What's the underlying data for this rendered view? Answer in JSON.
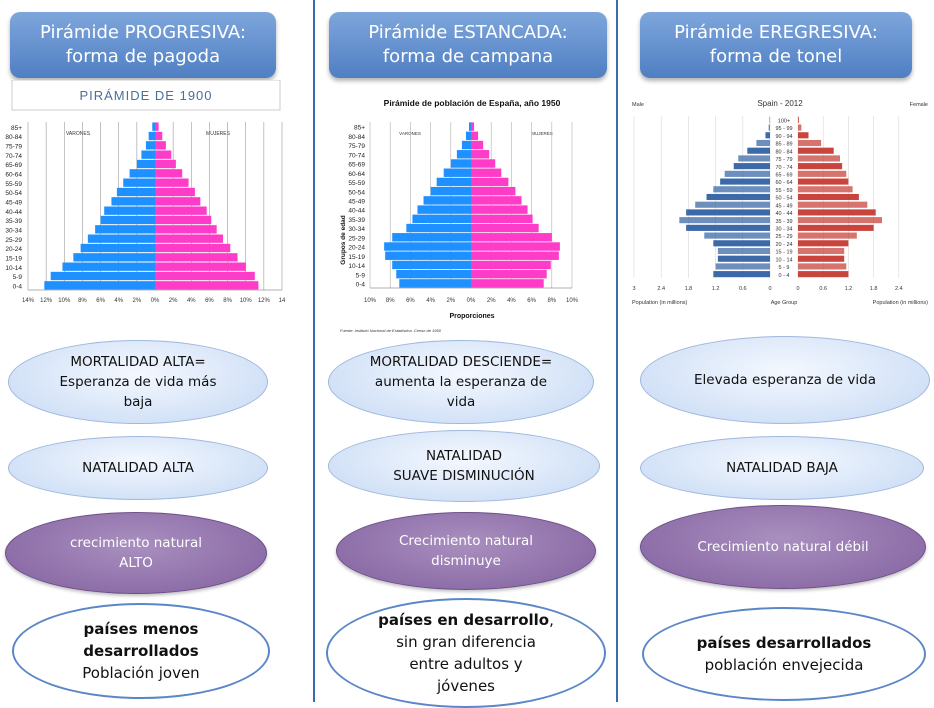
{
  "columns": [
    {
      "header_line1": "Pirámide PROGRESIVA:",
      "header_line2": "forma de pagoda",
      "mortality_line1": "MORTALIDAD ALTA=",
      "mortality_line2": "Esperanza de vida más",
      "mortality_line3": "baja",
      "natality": "NATALIDAD ALTA",
      "growth_line1": "crecimiento natural",
      "growth_line2": "ALTO",
      "countries_bold1": "países menos",
      "countries_bold2": "desarrollados",
      "countries_text": "Población joven"
    },
    {
      "header_line1": "Pirámide ESTANCADA:",
      "header_line2": "forma de campana",
      "mortality_line1": "MORTALIDAD DESCIENDE=",
      "mortality_line2": "aumenta la esperanza de",
      "mortality_line3": "vida",
      "natality_line1": "NATALIDAD",
      "natality_line2": "SUAVE DISMINUCIÓN",
      "growth_line1": "Crecimiento natural",
      "growth_line2": "disminuye",
      "countries_bold1": "países en desarrollo",
      "countries_comma": ",",
      "countries_line2": "sin gran diferencia",
      "countries_line3": "entre adultos y",
      "countries_line4": "jóvenes"
    },
    {
      "header_line1": "Pirámide EREGRESIVA:",
      "header_line2": "forma de tonel",
      "mortality": "Elevada esperanza de vida",
      "natality": "NATALIDAD BAJA",
      "growth": "Crecimiento natural débil",
      "countries_bold": "países desarrollados",
      "countries_text": "población envejecida"
    }
  ],
  "chart_data": [
    {
      "type": "bar",
      "title": "PIRÁMIDE DE 1900",
      "left_label": "VARONES",
      "right_label": "MUJERES",
      "categories": [
        "85+",
        "80-84",
        "75-79",
        "70-74",
        "65-69",
        "60-64",
        "55-59",
        "50-54",
        "45-49",
        "40-44",
        "35-39",
        "30-34",
        "25-29",
        "20-24",
        "15-19",
        "10-14",
        "5-9",
        "0-4"
      ],
      "x_ticks": [
        "14%",
        "12%",
        "10%",
        "8%",
        "6%",
        "4%",
        "2%",
        "0%",
        "2%",
        "4%",
        "6%",
        "8%",
        "10%",
        "12%",
        "14"
      ],
      "xlim": [
        -14,
        14
      ],
      "series": [
        {
          "name": "VARONES",
          "color": "#1e90ff",
          "values": [
            0.3,
            0.7,
            1.0,
            1.5,
            2.0,
            2.8,
            3.5,
            4.2,
            4.8,
            5.6,
            6.0,
            6.6,
            7.4,
            8.2,
            9.0,
            10.2,
            11.5,
            12.2
          ]
        },
        {
          "name": "MUJERES",
          "color": "#ff3cc8",
          "values": [
            0.4,
            0.8,
            1.2,
            1.8,
            2.3,
            3.0,
            3.7,
            4.4,
            5.0,
            5.7,
            6.2,
            6.8,
            7.5,
            8.3,
            9.1,
            10.0,
            11.0,
            11.4
          ]
        }
      ]
    },
    {
      "type": "bar",
      "title": "Pirámide de población de España, año 1950",
      "ylabel": "Grupos de edad",
      "xlabel": "Proporciones",
      "left_label": "VARONES",
      "right_label": "MUJERES",
      "source": "Fuente: Instituto Nacional de Estadística. Censo de 1950",
      "categories": [
        "85+",
        "80-84",
        "75-79",
        "70-74",
        "65-69",
        "60-64",
        "55-59",
        "50-54",
        "45-49",
        "40-44",
        "35-39",
        "30-34",
        "25-29",
        "20-24",
        "15-19",
        "10-14",
        "5-9",
        "0-4"
      ],
      "x_ticks": [
        "10%",
        "8%",
        "6%",
        "4%",
        "2%",
        "0%",
        "2%",
        "4%",
        "6%",
        "8%",
        "10%"
      ],
      "xlim": [
        -10,
        10
      ],
      "series": [
        {
          "name": "VARONES",
          "color": "#1e90ff",
          "values": [
            0.2,
            0.5,
            0.9,
            1.4,
            2.0,
            2.7,
            3.4,
            4.0,
            4.7,
            5.3,
            5.8,
            6.4,
            7.8,
            8.6,
            8.5,
            7.8,
            7.4,
            7.1
          ]
        },
        {
          "name": "MUJERES",
          "color": "#ff3cc8",
          "values": [
            0.3,
            0.7,
            1.2,
            1.8,
            2.4,
            3.0,
            3.7,
            4.4,
            5.0,
            5.6,
            6.1,
            6.7,
            8.0,
            8.8,
            8.7,
            7.9,
            7.5,
            7.2
          ]
        }
      ]
    },
    {
      "type": "bar",
      "title": "Spain - 2012",
      "left_label": "Male",
      "right_label": "Female",
      "xlabel_left": "Population (in millions)",
      "xlabel_center": "Age Group",
      "xlabel_right": "Population (in millions)",
      "categories": [
        "100+",
        "95 - 99",
        "90 - 94",
        "85 - 89",
        "80 - 84",
        "75 - 79",
        "70 - 74",
        "65 - 69",
        "60 - 64",
        "55 - 59",
        "50 - 54",
        "45 - 49",
        "40 - 44",
        "35 - 39",
        "30 - 34",
        "25 - 29",
        "20 - 24",
        "15 - 19",
        "10 - 14",
        "5 - 9",
        "0 - 4"
      ],
      "x_ticks": [
        "3",
        "2.4",
        "1.8",
        "1.2",
        "0.6",
        "0",
        "0",
        "0.6",
        "1.2",
        "1.8",
        "2.4"
      ],
      "xlim": [
        -3,
        3
      ],
      "series": [
        {
          "name": "Male",
          "color": "#3c6aa8",
          "values": [
            0.01,
            0.03,
            0.1,
            0.3,
            0.5,
            0.7,
            0.8,
            1.0,
            1.1,
            1.25,
            1.4,
            1.65,
            1.85,
            2.0,
            1.85,
            1.45,
            1.25,
            1.15,
            1.15,
            1.2,
            1.25
          ]
        },
        {
          "name": "Female",
          "color": "#c8443c",
          "values": [
            0.02,
            0.08,
            0.25,
            0.55,
            0.85,
            1.0,
            1.05,
            1.15,
            1.2,
            1.3,
            1.45,
            1.65,
            1.85,
            2.0,
            1.8,
            1.4,
            1.2,
            1.1,
            1.1,
            1.15,
            1.2
          ]
        }
      ]
    }
  ]
}
